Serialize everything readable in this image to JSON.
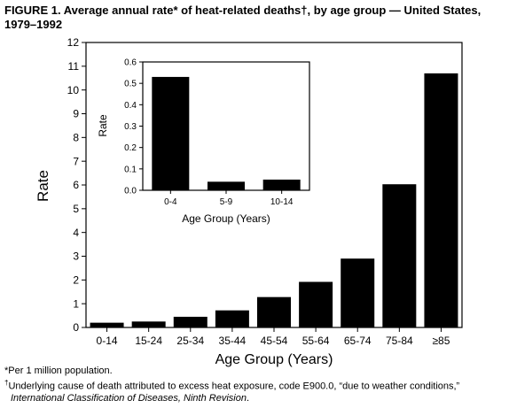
{
  "header": {
    "title": "FIGURE 1. Average annual rate* of heat-related deaths†, by age group — United States, 1979–1992"
  },
  "chart_data": [
    {
      "type": "bar",
      "categories": [
        "0-14",
        "15-24",
        "25-34",
        "35-44",
        "45-54",
        "55-64",
        "65-74",
        "75-84",
        "≥85"
      ],
      "values": [
        0.2,
        0.25,
        0.45,
        0.72,
        1.28,
        1.92,
        2.9,
        6.03,
        10.7
      ],
      "xlabel": "Age Group (Years)",
      "ylabel": "Rate",
      "ylim": [
        0,
        12
      ],
      "yticks": [
        "0",
        "1",
        "2",
        "3",
        "4",
        "5",
        "6",
        "7",
        "8",
        "9",
        "10",
        "11",
        "12"
      ],
      "grid": false,
      "bar_color": "#000000"
    },
    {
      "type": "bar",
      "categories": [
        "0-4",
        "5-9",
        "10-14"
      ],
      "values": [
        0.53,
        0.04,
        0.05
      ],
      "xlabel": "Age Group (Years)",
      "ylabel": "Rate",
      "ylim": [
        0,
        0.6
      ],
      "yticks": [
        "0.0",
        "0.1",
        "0.2",
        "0.3",
        "0.4",
        "0.5",
        "0.6"
      ],
      "grid": false,
      "bar_color": "#000000"
    }
  ],
  "footnotes": {
    "per_million": "*Per 1 million population.",
    "dagger": "†",
    "cause": "Underlying cause of death attributed to excess heat exposure, code E900.0, “due to weather conditions,”",
    "classification": "International Classification of Diseases, Ninth Revision",
    "period": "."
  }
}
